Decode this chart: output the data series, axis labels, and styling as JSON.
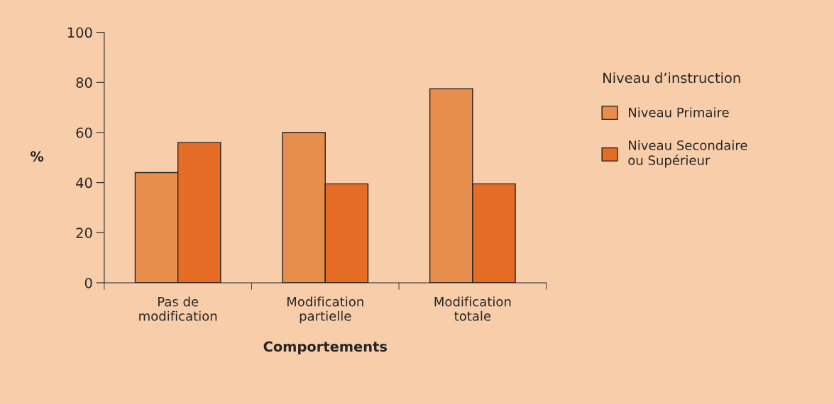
{
  "chart_data": {
    "type": "bar",
    "xlabel": "Comportements",
    "ylabel": "%",
    "legend_title": "Niveau d’instruction",
    "categories": [
      "Pas de\nmodification",
      "Modification\npartielle",
      "Modification\ntotale"
    ],
    "series": [
      {
        "name": "Niveau Primaire",
        "color": "#e88e4c",
        "values": [
          44,
          60,
          77.5
        ]
      },
      {
        "name": "Niveau Secondaire\nou Supérieur",
        "color": "#e46c24",
        "values": [
          56,
          39.5,
          39.5
        ]
      }
    ],
    "ylim": [
      0,
      100
    ],
    "yticks": [
      0,
      20,
      40,
      60,
      80,
      100
    ],
    "grid": false,
    "legend": "right"
  }
}
